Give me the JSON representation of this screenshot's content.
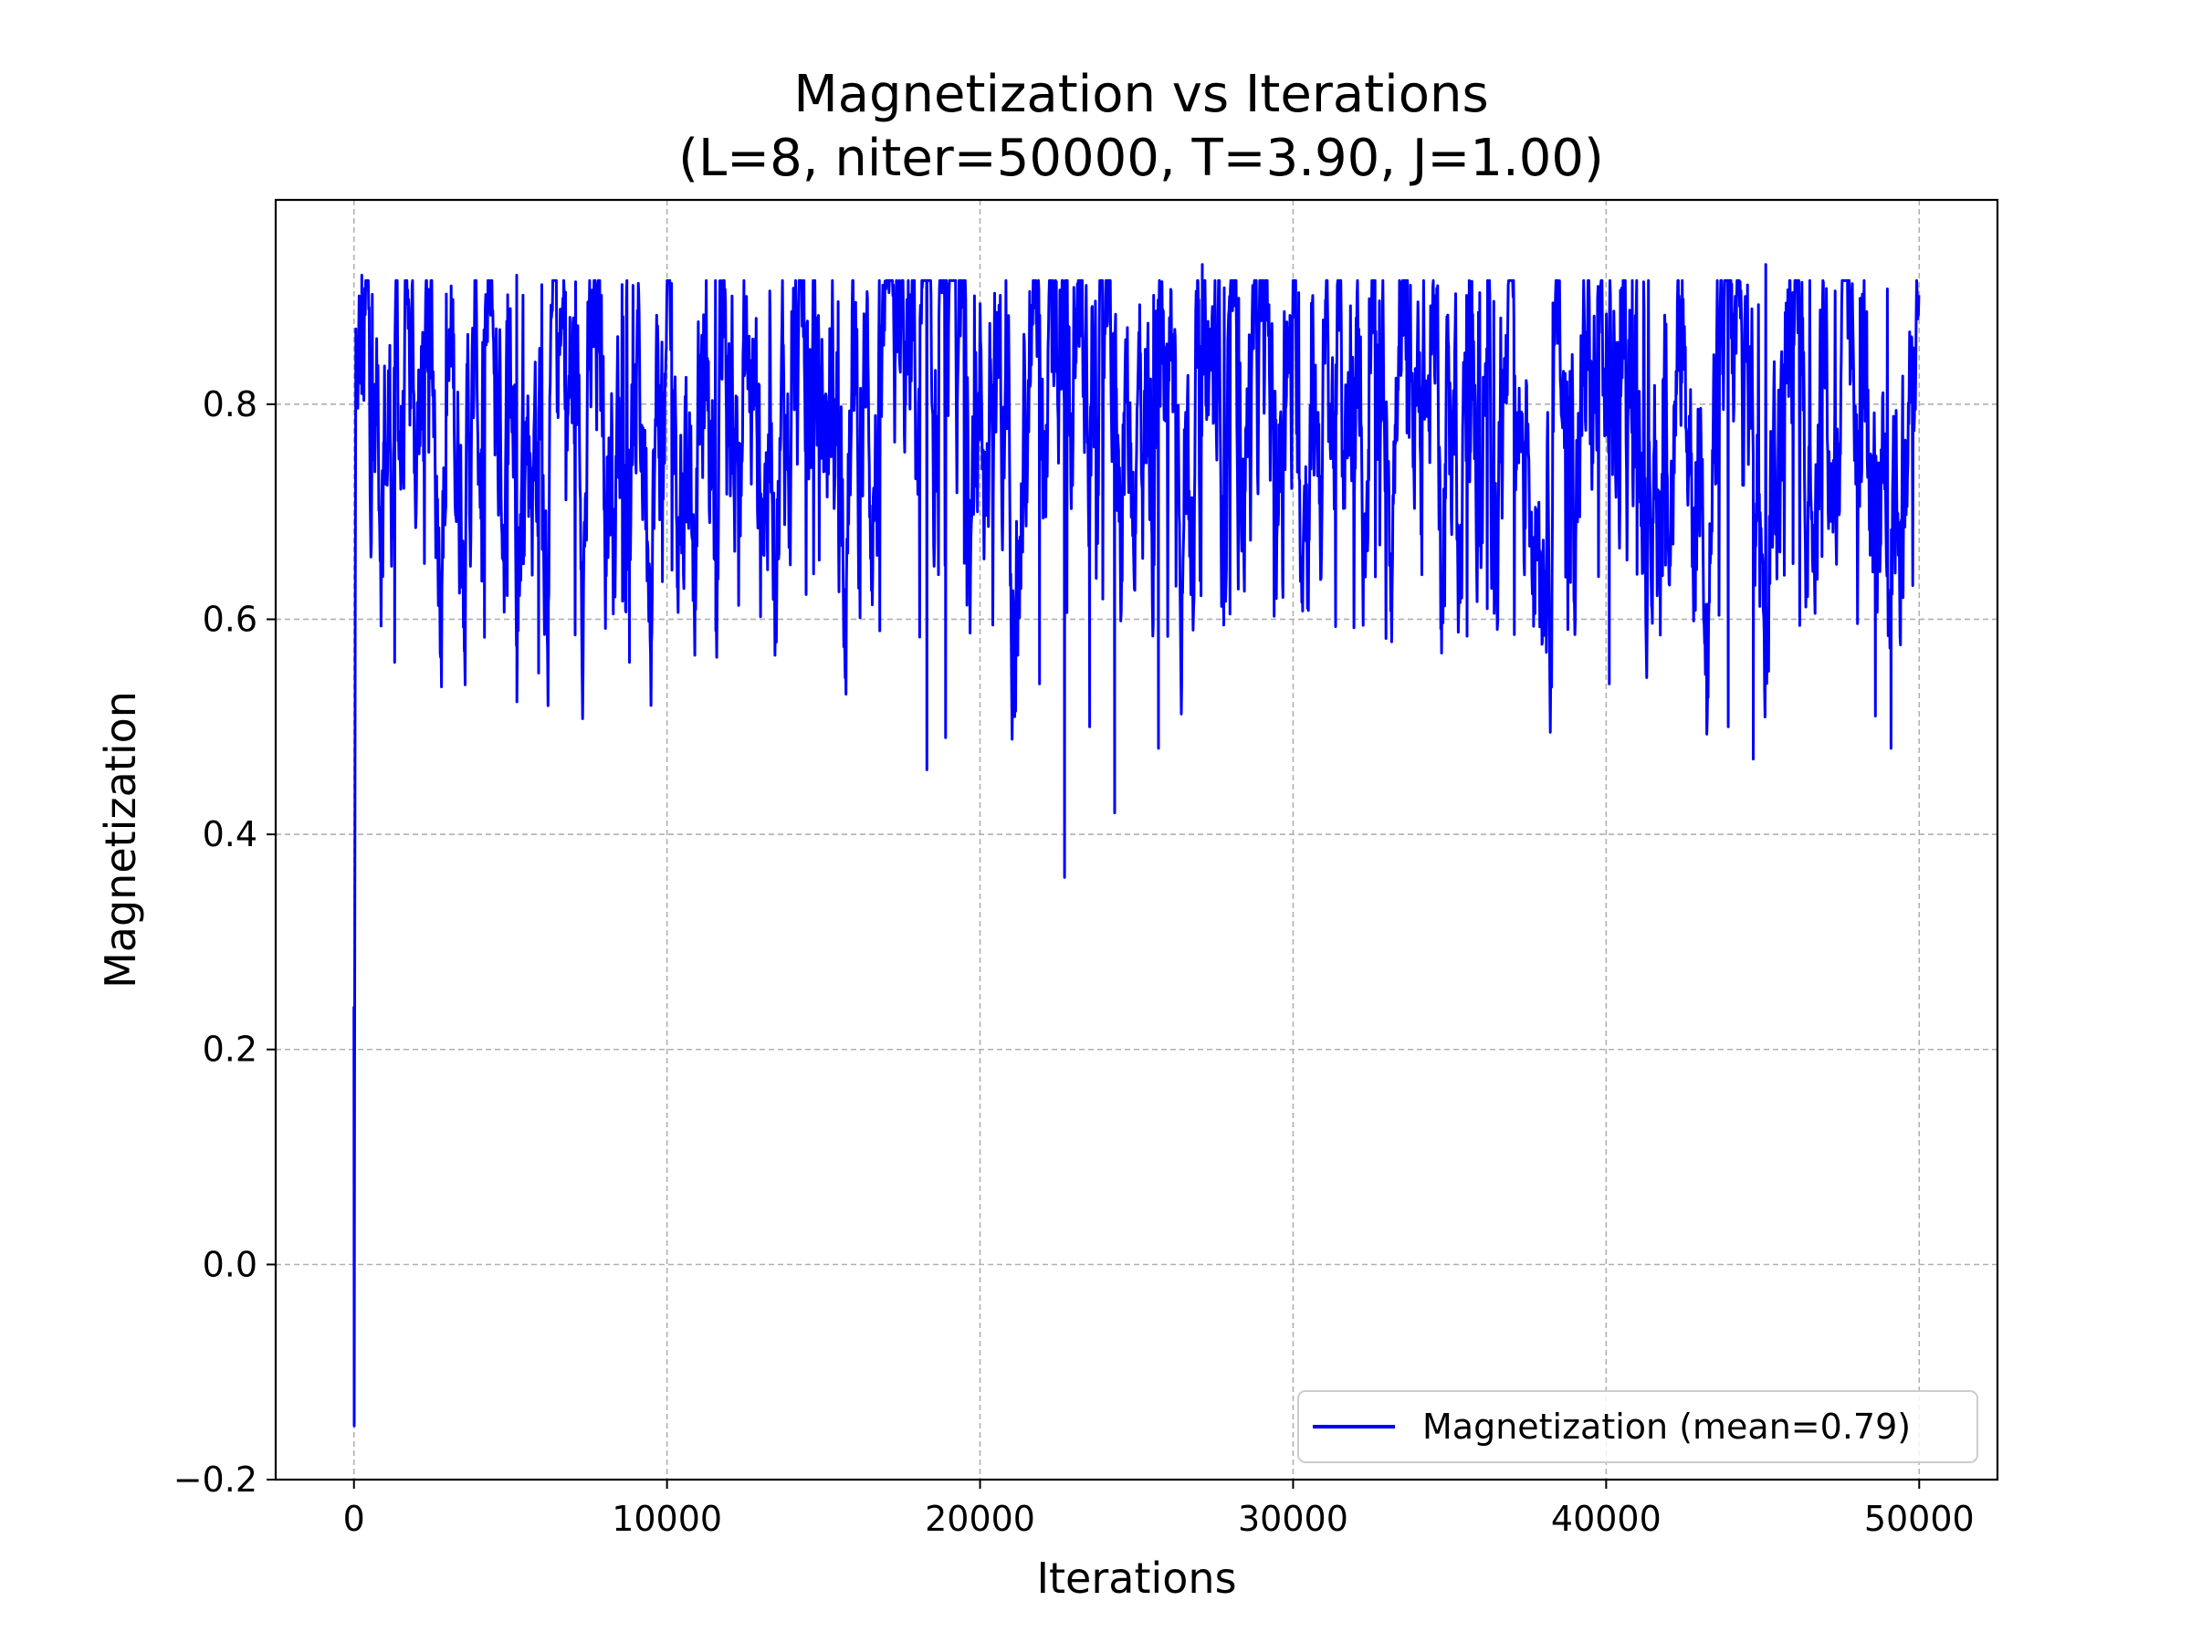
{
  "chart_data": {
    "type": "line",
    "title_line1": "Magnetization vs Iterations",
    "title_line2": "(L=8, niter=50000, T=3.90, J=1.00)",
    "xlabel": "Iterations",
    "ylabel": "Magnetization",
    "xlim": [
      -2500,
      52500
    ],
    "ylim": [
      -0.2,
      0.99
    ],
    "xticks": [
      0,
      10000,
      20000,
      30000,
      40000,
      50000
    ],
    "xtick_labels": [
      "0",
      "10000",
      "20000",
      "30000",
      "40000",
      "50000"
    ],
    "yticks": [
      -0.2,
      0.0,
      0.2,
      0.4,
      0.6,
      0.8
    ],
    "ytick_labels": [
      "−0.2",
      "0.0",
      "0.2",
      "0.4",
      "0.6",
      "0.8"
    ],
    "grid": true,
    "legend_position": "lower-right",
    "series": [
      {
        "name": "Magnetization (mean=0.79)",
        "color": "#0000ff",
        "mean": 0.79,
        "band_typical": [
          0.68,
          0.88
        ],
        "initial_points": [
          {
            "x": 0,
            "y": 0.24
          },
          {
            "x": 8,
            "y": -0.15
          },
          {
            "x": 20,
            "y": 0.17
          },
          {
            "x": 40,
            "y": 0.59
          },
          {
            "x": 60,
            "y": 0.87
          }
        ],
        "notable_minima": [
          {
            "x": 1300,
            "y": 0.56
          },
          {
            "x": 5900,
            "y": 0.55
          },
          {
            "x": 8800,
            "y": 0.56
          },
          {
            "x": 18300,
            "y": 0.46
          },
          {
            "x": 18900,
            "y": 0.49
          },
          {
            "x": 21900,
            "y": 0.54
          },
          {
            "x": 22700,
            "y": 0.36
          },
          {
            "x": 23500,
            "y": 0.5
          },
          {
            "x": 24300,
            "y": 0.42
          },
          {
            "x": 25700,
            "y": 0.48
          },
          {
            "x": 40100,
            "y": 0.54
          },
          {
            "x": 43900,
            "y": 0.5
          },
          {
            "x": 44700,
            "y": 0.47
          },
          {
            "x": 48600,
            "y": 0.51
          },
          {
            "x": 49100,
            "y": 0.48
          }
        ],
        "notable_maxima": [
          {
            "x": 250,
            "y": 0.92
          },
          {
            "x": 5200,
            "y": 0.92
          },
          {
            "x": 27100,
            "y": 0.93
          },
          {
            "x": 45100,
            "y": 0.93
          }
        ]
      }
    ]
  }
}
